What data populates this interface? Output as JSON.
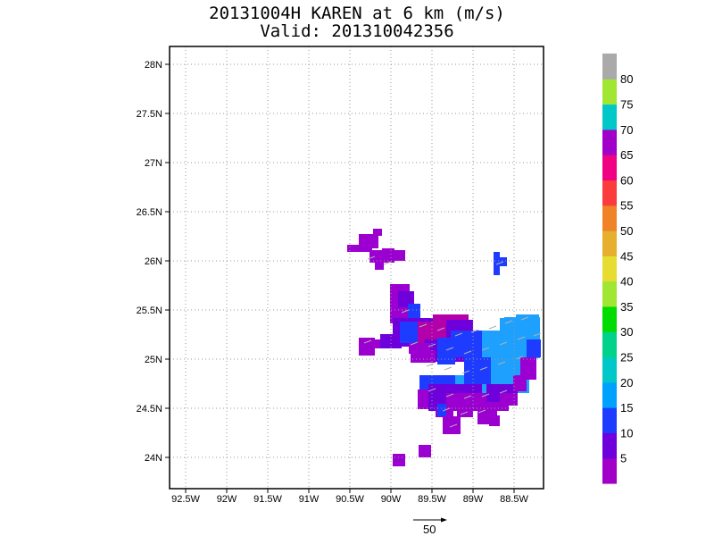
{
  "title": "20131004H KAREN at 6 km (m/s)",
  "subtitle": "Valid: 201310042356",
  "axes": {
    "x_ticks": [
      "92.5W",
      "92W",
      "91.5W",
      "91W",
      "90.5W",
      "90W",
      "89.5W",
      "89W",
      "88.5W"
    ],
    "y_ticks": [
      "28N",
      "27.5N",
      "27N",
      "26.5N",
      "26N",
      "25.5N",
      "25N",
      "24.5N",
      "24N"
    ]
  },
  "colorbar": {
    "labels": [
      "5",
      "10",
      "15",
      "20",
      "25",
      "30",
      "35",
      "40",
      "45",
      "50",
      "55",
      "60",
      "65",
      "70",
      "75",
      "80"
    ],
    "colors": [
      "#a000c8",
      "#6e00dc",
      "#1e3cff",
      "#00a0ff",
      "#00c8c8",
      "#00d28c",
      "#00dc00",
      "#a0e632",
      "#e6dc32",
      "#e6af2d",
      "#f08228",
      "#fa3c3c",
      "#f00082",
      "#a000c8",
      "#00c8c8",
      "#a0e632",
      "#aaaaaa"
    ]
  },
  "reference_vector": {
    "label": "50"
  },
  "field_colors": {
    "purple": "#9b00d1",
    "violet": "#6e00dc",
    "blue": "#1e3cff",
    "lightblue": "#1ea0ff",
    "magenta": "#b400aa"
  }
}
